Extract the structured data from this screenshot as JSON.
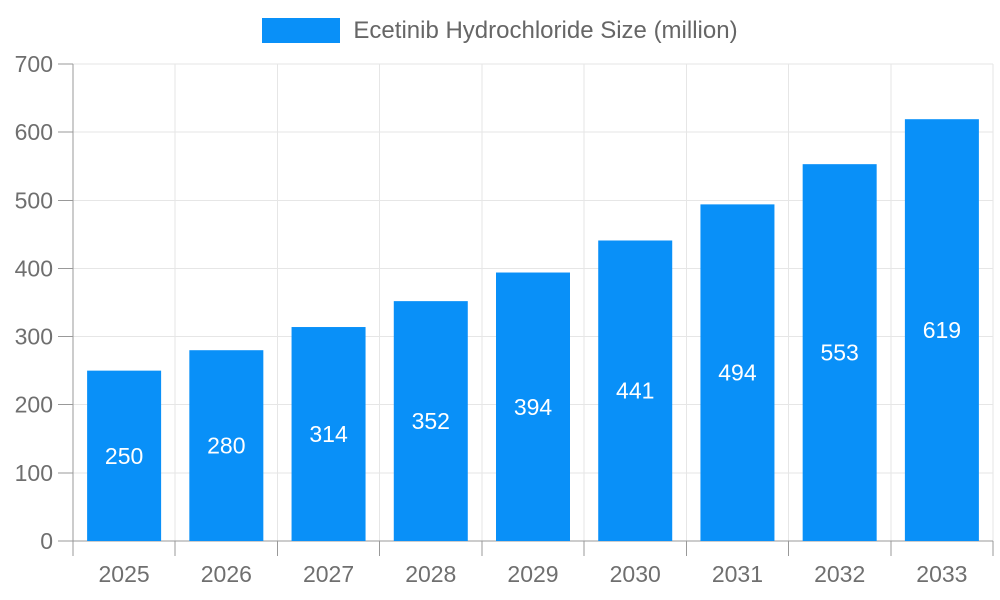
{
  "chart_data": {
    "type": "bar",
    "title": "",
    "legend_label": "Ecetinib Hydrochloride Size (million)",
    "legend_position": "top-center",
    "categories": [
      "2025",
      "2026",
      "2027",
      "2028",
      "2029",
      "2030",
      "2031",
      "2032",
      "2033"
    ],
    "series": [
      {
        "name": "Ecetinib Hydrochloride Size (million)",
        "values": [
          250,
          280,
          314,
          352,
          394,
          441,
          494,
          553,
          619
        ]
      }
    ],
    "xlabel": "",
    "ylabel": "",
    "ylim": [
      0,
      700
    ],
    "ytick_interval": 100,
    "ytick_labels": [
      "0",
      "100",
      "200",
      "300",
      "400",
      "500",
      "600",
      "700"
    ],
    "grid": {
      "horizontal": true,
      "vertical": true
    },
    "value_labels_position": "inside-center",
    "colors": {
      "bar": "#0990f8",
      "axis_line": "#999999",
      "grid_line": "#e6e6e6",
      "axis_label": "#6f6f6f",
      "legend_text": "#666666",
      "value_label": "#ffffff",
      "background": "#ffffff"
    }
  }
}
